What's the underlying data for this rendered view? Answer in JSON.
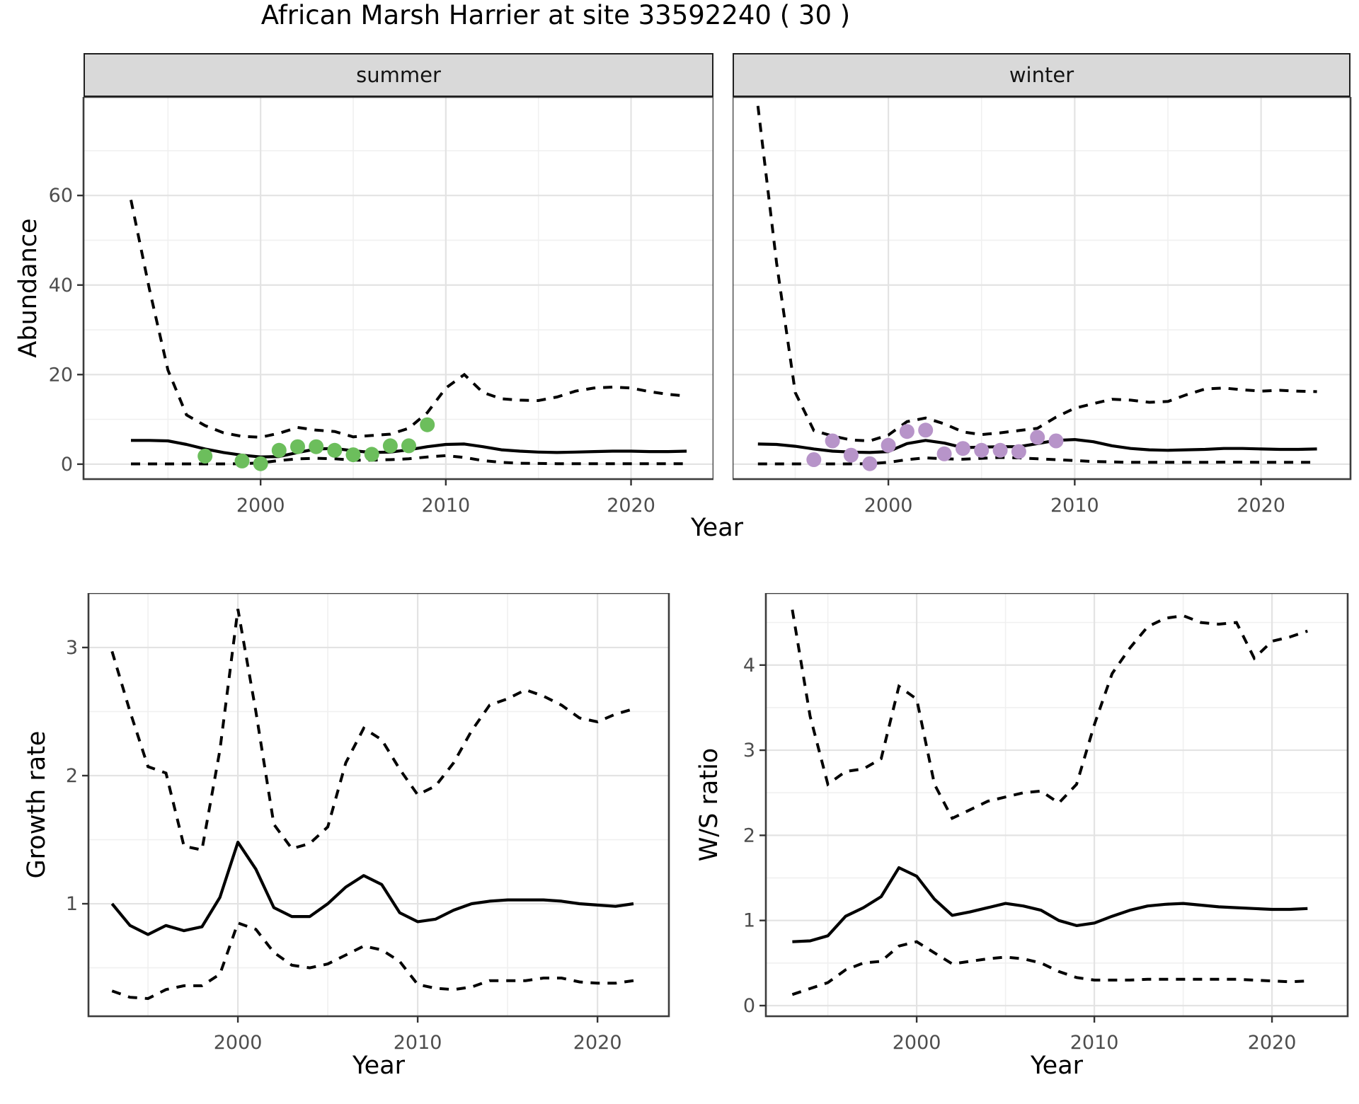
{
  "title": "African Marsh Harrier at site 33592240 ( 30 )",
  "facets": {
    "summer_label": "summer",
    "winter_label": "winter"
  },
  "axes": {
    "top_y_label": "Abundance",
    "top_x_label": "Year",
    "bottom_left_y_label": "Growth rate",
    "bottom_left_x_label": "Year",
    "bottom_right_y_label": "W/S ratio",
    "bottom_right_x_label": "Year"
  },
  "colors": {
    "summer_points": "#6CBE5C",
    "winter_points": "#B794C9",
    "line": "#000000",
    "panel_border": "#3D3D3D",
    "strip_bg": "#D9D9D9",
    "grid_major": "#E3E3E3",
    "grid_minor": "#F0F0F0",
    "axis_text": "#4D4D4D",
    "tick_mark": "#333333"
  },
  "chart_data": [
    {
      "id": "abundance_summer",
      "type": "line",
      "facet": "summer",
      "xlabel": "Year",
      "ylabel": "Abundance",
      "x": [
        1993,
        1994,
        1995,
        1996,
        1997,
        1998,
        1999,
        2000,
        2001,
        2002,
        2003,
        2004,
        2005,
        2006,
        2007,
        2008,
        2009,
        2010,
        2011,
        2012,
        2013,
        2014,
        2015,
        2016,
        2017,
        2018,
        2019,
        2020,
        2021,
        2022,
        2023
      ],
      "series": [
        {
          "name": "median",
          "style": "solid",
          "values": [
            5.3,
            5.3,
            5.2,
            4.4,
            3.4,
            2.6,
            2.0,
            1.6,
            1.7,
            2.6,
            3.4,
            3.5,
            3.0,
            2.6,
            2.7,
            3.2,
            3.9,
            4.4,
            4.5,
            3.9,
            3.2,
            2.9,
            2.7,
            2.6,
            2.7,
            2.8,
            2.9,
            2.9,
            2.8,
            2.8,
            2.9
          ]
        },
        {
          "name": "upper_ci",
          "style": "dashed",
          "values": [
            59,
            39,
            21,
            11,
            8.6,
            7.0,
            6.2,
            6.0,
            6.9,
            8.2,
            7.6,
            7.3,
            6.1,
            6.4,
            6.7,
            8.0,
            11.5,
            17,
            20,
            16,
            14.6,
            14.3,
            14.2,
            15,
            16.3,
            17,
            17.2,
            17,
            16.2,
            15.6,
            15.2
          ]
        },
        {
          "name": "lower_ci",
          "style": "dashed",
          "values": [
            0.05,
            0.05,
            0.05,
            0.05,
            0.05,
            0.05,
            0.1,
            0.3,
            0.8,
            1.2,
            1.3,
            1.2,
            0.9,
            0.9,
            1.0,
            1.2,
            1.6,
            1.9,
            1.5,
            0.8,
            0.4,
            0.2,
            0.15,
            0.1,
            0.1,
            0.1,
            0.1,
            0.1,
            0.1,
            0.1,
            0.1
          ]
        }
      ],
      "points": {
        "name": "observed_counts",
        "color_key": "summer_points",
        "xy": [
          [
            1997,
            1.8
          ],
          [
            1999,
            0.7
          ],
          [
            2000,
            0.1
          ],
          [
            2001,
            3.1
          ],
          [
            2002,
            3.9
          ],
          [
            2003,
            3.9
          ],
          [
            2004,
            3.1
          ],
          [
            2005,
            2.1
          ],
          [
            2006,
            2.2
          ],
          [
            2007,
            4.1
          ],
          [
            2008,
            4.1
          ],
          [
            2009,
            8.8
          ]
        ]
      },
      "xlim": [
        1990.44,
        2024.45
      ],
      "ylim": [
        -3.34,
        82
      ],
      "xticks": [
        2000,
        2010,
        2020
      ],
      "yticks": [
        0,
        20,
        40,
        60
      ],
      "grid": true,
      "legend": "none"
    },
    {
      "id": "abundance_winter",
      "type": "line",
      "facet": "winter",
      "xlabel": "Year",
      "ylabel": "Abundance",
      "x": [
        1993,
        1994,
        1995,
        1996,
        1997,
        1998,
        1999,
        2000,
        2001,
        2002,
        2003,
        2004,
        2005,
        2006,
        2007,
        2008,
        2009,
        2010,
        2011,
        2012,
        2013,
        2014,
        2015,
        2016,
        2017,
        2018,
        2019,
        2020,
        2021,
        2022,
        2023
      ],
      "series": [
        {
          "name": "median",
          "style": "solid",
          "values": [
            4.5,
            4.4,
            4.0,
            3.4,
            2.9,
            2.7,
            2.6,
            2.8,
            4.6,
            5.3,
            4.7,
            3.7,
            3.8,
            3.9,
            3.9,
            4.6,
            5.3,
            5.5,
            5.0,
            4.1,
            3.5,
            3.2,
            3.1,
            3.2,
            3.3,
            3.5,
            3.5,
            3.4,
            3.3,
            3.3,
            3.4
          ]
        },
        {
          "name": "upper_ci",
          "style": "dashed",
          "values": [
            80,
            45,
            16,
            7.5,
            6.3,
            5.4,
            5.2,
            6.5,
            9.5,
            10.3,
            9.0,
            7.2,
            6.6,
            7.0,
            7.5,
            8.0,
            10.5,
            12.5,
            13.5,
            14.5,
            14.3,
            13.8,
            14.0,
            15.5,
            16.8,
            17.0,
            16.6,
            16.3,
            16.5,
            16.3,
            16.2
          ]
        },
        {
          "name": "lower_ci",
          "style": "dashed",
          "values": [
            0.05,
            0.05,
            0.05,
            0.05,
            0.05,
            0.05,
            0.1,
            0.4,
            1.0,
            1.4,
            1.2,
            1.1,
            1.3,
            1.5,
            1.4,
            1.2,
            1.0,
            0.8,
            0.6,
            0.5,
            0.4,
            0.4,
            0.4,
            0.4,
            0.4,
            0.45,
            0.45,
            0.4,
            0.4,
            0.4,
            0.4
          ]
        }
      ],
      "points": {
        "name": "observed_counts",
        "color_key": "winter_points",
        "xy": [
          [
            1996,
            1.0
          ],
          [
            1997,
            5.2
          ],
          [
            1998,
            2.0
          ],
          [
            1999,
            0.1
          ],
          [
            2000,
            4.2
          ],
          [
            2001,
            7.3
          ],
          [
            2002,
            7.6
          ],
          [
            2003,
            2.3
          ],
          [
            2004,
            3.5
          ],
          [
            2005,
            3.1
          ],
          [
            2006,
            3.1
          ],
          [
            2007,
            2.8
          ],
          [
            2008,
            6.0
          ],
          [
            2009,
            5.2
          ]
        ]
      },
      "xlim": [
        1991.64,
        2024.8
      ],
      "ylim": [
        -3.34,
        82
      ],
      "xticks": [
        2000,
        2010,
        2020
      ],
      "yticks": [
        0,
        20,
        40,
        60
      ],
      "grid": true,
      "legend": "none"
    },
    {
      "id": "growth_rate",
      "type": "line",
      "xlabel": "Year",
      "ylabel": "Growth rate",
      "x": [
        1993,
        1994,
        1995,
        1996,
        1997,
        1998,
        1999,
        2000,
        2001,
        2002,
        2003,
        2004,
        2005,
        2006,
        2007,
        2008,
        2009,
        2010,
        2011,
        2012,
        2013,
        2014,
        2015,
        2016,
        2017,
        2018,
        2019,
        2020,
        2021,
        2022
      ],
      "series": [
        {
          "name": "median",
          "style": "solid",
          "values": [
            1.0,
            0.83,
            0.76,
            0.83,
            0.79,
            0.82,
            1.05,
            1.48,
            1.27,
            0.97,
            0.9,
            0.9,
            1.0,
            1.13,
            1.22,
            1.15,
            0.93,
            0.86,
            0.88,
            0.95,
            1.0,
            1.02,
            1.03,
            1.03,
            1.03,
            1.02,
            1.0,
            0.99,
            0.98,
            1.0
          ]
        },
        {
          "name": "upper_ci",
          "style": "dashed",
          "values": [
            2.97,
            2.5,
            2.07,
            2.02,
            1.45,
            1.42,
            2.2,
            3.3,
            2.5,
            1.62,
            1.43,
            1.47,
            1.6,
            2.1,
            2.37,
            2.28,
            2.05,
            1.85,
            1.92,
            2.1,
            2.35,
            2.55,
            2.6,
            2.67,
            2.62,
            2.55,
            2.45,
            2.42,
            2.48,
            2.52
          ]
        },
        {
          "name": "lower_ci",
          "style": "dashed",
          "values": [
            0.32,
            0.27,
            0.26,
            0.33,
            0.36,
            0.36,
            0.45,
            0.85,
            0.8,
            0.62,
            0.52,
            0.5,
            0.53,
            0.6,
            0.67,
            0.64,
            0.55,
            0.37,
            0.34,
            0.33,
            0.35,
            0.4,
            0.4,
            0.4,
            0.42,
            0.42,
            0.39,
            0.38,
            0.38,
            0.4
          ]
        }
      ],
      "xlim": [
        1991.69,
        2023.97
      ],
      "ylim": [
        0.122,
        3.425
      ],
      "xticks": [
        2000,
        2010,
        2020
      ],
      "yticks": [
        1,
        2,
        3
      ],
      "grid": true,
      "legend": "none"
    },
    {
      "id": "ws_ratio",
      "type": "line",
      "xlabel": "Year",
      "ylabel": "W/S ratio",
      "x": [
        1993,
        1994,
        1995,
        1996,
        1997,
        1998,
        1999,
        2000,
        2001,
        2002,
        2003,
        2004,
        2005,
        2006,
        2007,
        2008,
        2009,
        2010,
        2011,
        2012,
        2013,
        2014,
        2015,
        2016,
        2017,
        2018,
        2019,
        2020,
        2021,
        2022
      ],
      "series": [
        {
          "name": "median",
          "style": "solid",
          "values": [
            0.75,
            0.76,
            0.82,
            1.05,
            1.15,
            1.28,
            1.62,
            1.52,
            1.25,
            1.06,
            1.1,
            1.15,
            1.2,
            1.17,
            1.12,
            1.0,
            0.94,
            0.97,
            1.05,
            1.12,
            1.17,
            1.19,
            1.2,
            1.18,
            1.16,
            1.15,
            1.14,
            1.13,
            1.13,
            1.14
          ]
        },
        {
          "name": "upper_ci",
          "style": "dashed",
          "values": [
            4.65,
            3.4,
            2.6,
            2.75,
            2.78,
            2.9,
            3.75,
            3.6,
            2.6,
            2.2,
            2.3,
            2.4,
            2.45,
            2.5,
            2.52,
            2.38,
            2.6,
            3.3,
            3.9,
            4.2,
            4.45,
            4.55,
            4.58,
            4.5,
            4.48,
            4.5,
            4.08,
            4.28,
            4.33,
            4.4
          ]
        },
        {
          "name": "lower_ci",
          "style": "dashed",
          "values": [
            0.13,
            0.2,
            0.27,
            0.42,
            0.5,
            0.52,
            0.7,
            0.75,
            0.62,
            0.49,
            0.52,
            0.55,
            0.57,
            0.55,
            0.5,
            0.4,
            0.33,
            0.3,
            0.3,
            0.3,
            0.31,
            0.31,
            0.31,
            0.31,
            0.31,
            0.31,
            0.3,
            0.29,
            0.28,
            0.29
          ]
        }
      ],
      "xlim": [
        1991.51,
        2024.26
      ],
      "ylim": [
        -0.125,
        4.846
      ],
      "xticks": [
        2000,
        2010,
        2020
      ],
      "yticks": [
        0,
        1,
        2,
        3,
        4
      ],
      "grid": true,
      "legend": "none"
    }
  ]
}
